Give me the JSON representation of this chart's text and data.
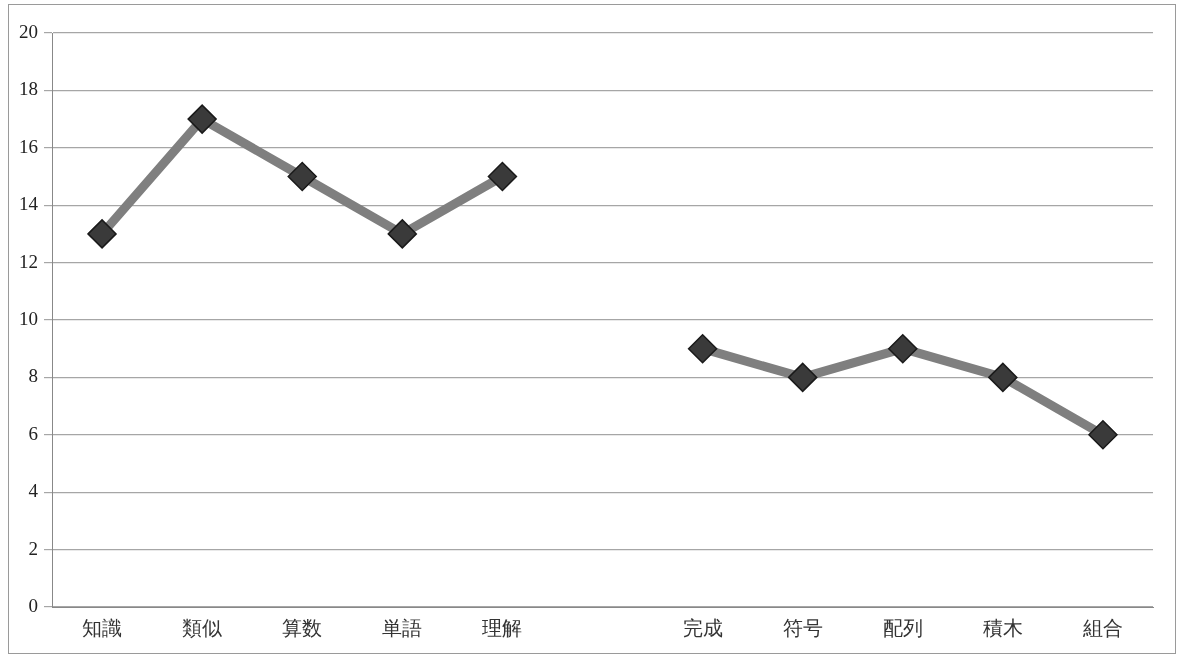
{
  "chart_data": {
    "type": "line",
    "categories": [
      "知識",
      "類似",
      "算数",
      "単語",
      "理解",
      null,
      "完成",
      "符号",
      "配列",
      "積木",
      "組合"
    ],
    "series": [
      {
        "color": "#7f7f7f",
        "values": [
          13,
          17,
          15,
          13,
          15,
          null,
          9,
          8,
          9,
          8,
          6
        ]
      }
    ],
    "ylim": [
      0,
      20
    ],
    "yticks": [
      0,
      2,
      4,
      6,
      8,
      10,
      12,
      14,
      16,
      18,
      20
    ],
    "grid": "y",
    "legend": false,
    "marker": "diamond",
    "line_style": "solid"
  }
}
